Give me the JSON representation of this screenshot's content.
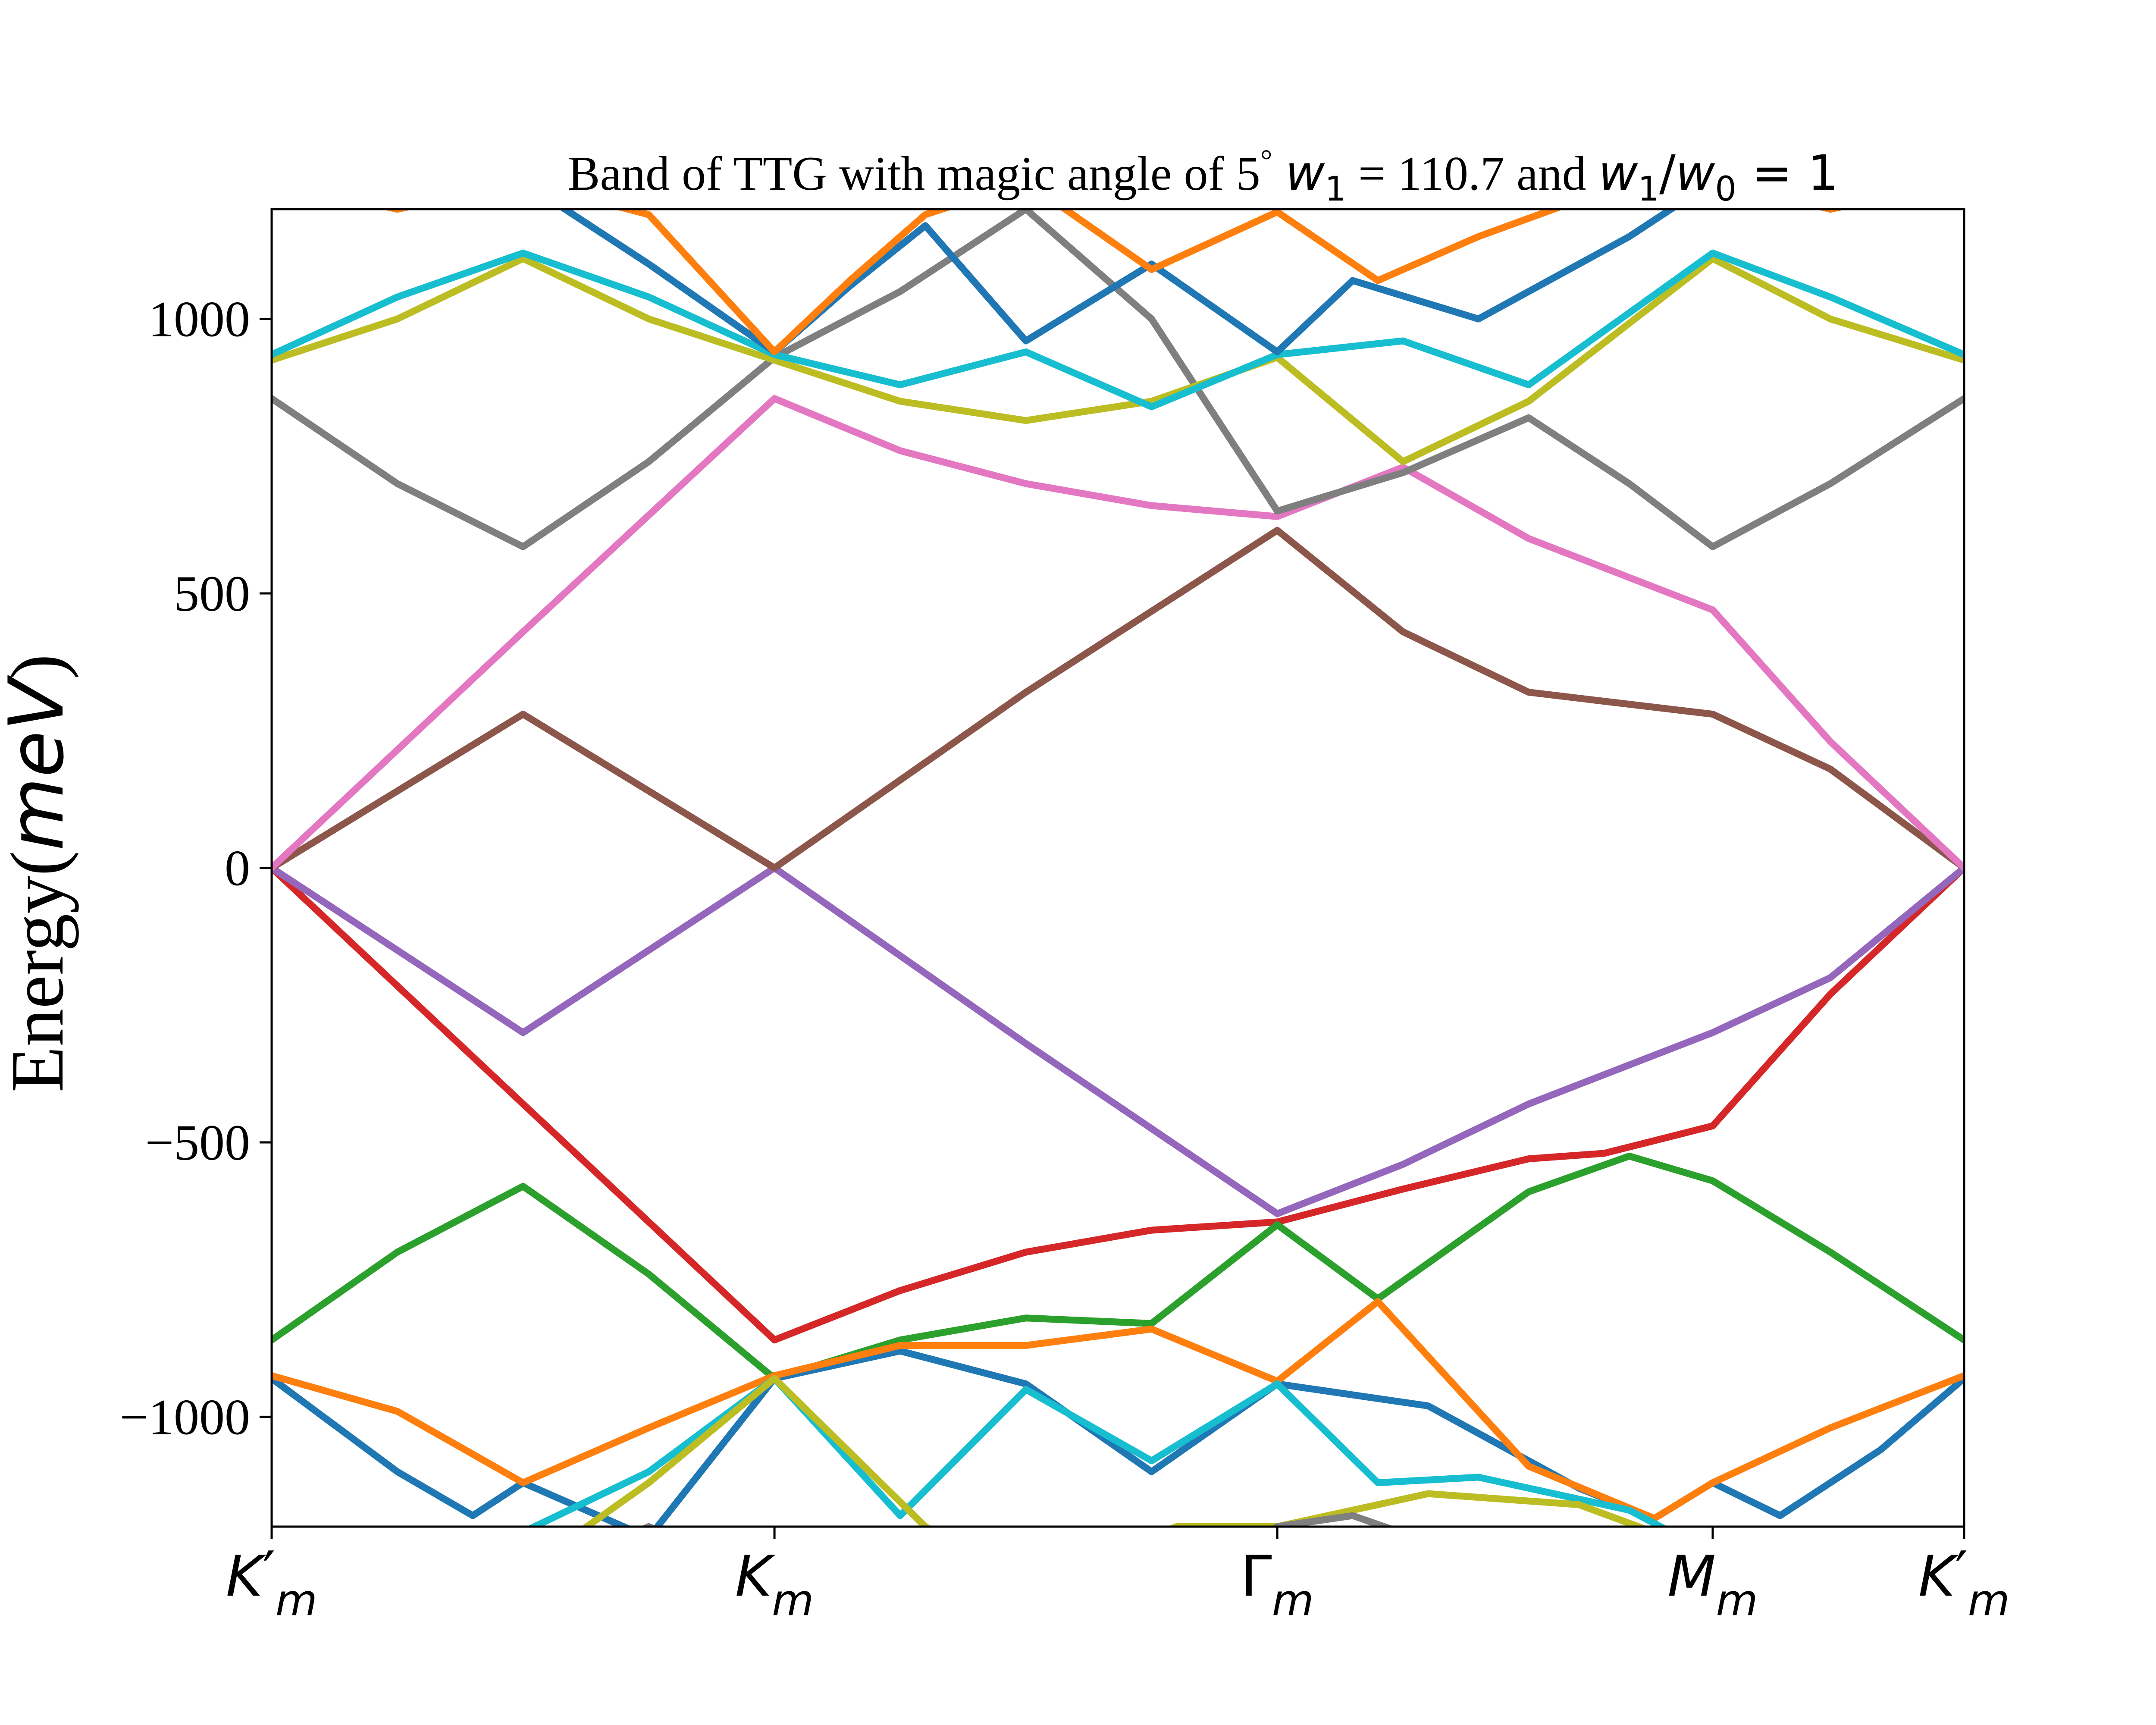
{
  "chart_data": {
    "type": "line",
    "title": {
      "prefix": "Band of TTG with magic angle of 5",
      "degree": "°",
      "w1_sym": "w",
      "w1_sub": "1",
      "w1_val": " = 110.7 and ",
      "ratio_w": "w",
      "ratio_sub1": "1",
      "ratio_slash": "/",
      "ratio_w0": "w",
      "ratio_sub0": "0",
      "ratio_val": " = 1"
    },
    "ylabel": {
      "text": "Energy(",
      "unit": "meV",
      "close": ")"
    },
    "ylim": [
      -1200,
      1200
    ],
    "xlim": [
      0,
      3.366
    ],
    "yticks": [
      {
        "value": 1000,
        "label": "1000"
      },
      {
        "value": 500,
        "label": "500"
      },
      {
        "value": 0,
        "label": "0"
      },
      {
        "value": -500,
        "label": "−500"
      },
      {
        "value": -1000,
        "label": "−1000"
      }
    ],
    "xticks": [
      {
        "value": 0,
        "base": "K",
        "prime": "′",
        "sub": "m"
      },
      {
        "value": 1.0,
        "base": "K",
        "prime": "",
        "sub": "m"
      },
      {
        "value": 2.0,
        "base": "Γ",
        "prime": "",
        "sub": "m"
      },
      {
        "value": 2.866,
        "base": "M",
        "prime": "",
        "sub": "m"
      },
      {
        "value": 3.366,
        "base": "K",
        "prime": "′",
        "sub": "m"
      }
    ],
    "grid": false,
    "series": [
      {
        "color": "#d62728",
        "x": [
          0,
          0.5,
          1.0,
          1.25,
          1.5,
          1.75,
          2.0,
          2.25,
          2.5,
          2.65,
          2.866,
          3.1,
          3.366
        ],
        "y": [
          0,
          -430,
          -860,
          -770,
          -700,
          -660,
          -645,
          -585,
          -530,
          -520,
          -470,
          -230,
          0
        ]
      },
      {
        "color": "#9467bd",
        "x": [
          0,
          0.5,
          1.0,
          1.5,
          2.0,
          2.25,
          2.5,
          2.866,
          3.1,
          3.366
        ],
        "y": [
          0,
          -300,
          0,
          -320,
          -630,
          -540,
          -430,
          -300,
          -200,
          0
        ]
      },
      {
        "color": "#8c564b",
        "x": [
          0,
          0.5,
          1.0,
          1.5,
          2.0,
          2.25,
          2.5,
          2.866,
          3.1,
          3.366
        ],
        "y": [
          0,
          280,
          0,
          320,
          615,
          430,
          320,
          280,
          180,
          0
        ]
      },
      {
        "color": "#e377c2",
        "x": [
          0,
          0.5,
          1.0,
          1.25,
          1.5,
          1.75,
          2.0,
          2.25,
          2.5,
          2.866,
          3.1,
          3.366
        ],
        "y": [
          0,
          430,
          855,
          760,
          700,
          660,
          640,
          730,
          600,
          470,
          230,
          0
        ]
      },
      {
        "color": "#2ca02c",
        "x": [
          0,
          0.25,
          0.5,
          0.75,
          1.0,
          1.25,
          1.5,
          1.75,
          2.0,
          2.2,
          2.5,
          2.7,
          2.866,
          3.1,
          3.366
        ],
        "y": [
          -860,
          -700,
          -580,
          -740,
          -930,
          -860,
          -820,
          -830,
          -650,
          -785,
          -590,
          -525,
          -570,
          -700,
          -860
        ]
      },
      {
        "color": "#7f7f7f",
        "x": [
          0,
          0.25,
          0.5,
          0.75,
          1.0,
          1.25,
          1.5,
          1.75,
          2.0,
          2.25,
          2.5,
          2.7,
          2.866,
          3.1,
          3.366
        ],
        "y": [
          855,
          700,
          585,
          740,
          930,
          1050,
          1200,
          1000,
          650,
          720,
          820,
          700,
          585,
          700,
          855
        ]
      },
      {
        "color": "#bcbd22",
        "x": [
          0,
          0.25,
          0.5,
          0.75,
          1.0,
          1.25,
          1.5,
          1.75,
          2.0,
          2.25,
          2.5,
          2.866,
          3.1,
          3.366
        ],
        "y": [
          925,
          1000,
          1110,
          1000,
          925,
          850,
          815,
          850,
          930,
          740,
          850,
          1110,
          1000,
          925
        ]
      },
      {
        "color": "#17becf",
        "x": [
          0,
          0.25,
          0.5,
          0.75,
          1.0,
          1.25,
          1.5,
          1.75,
          2.0,
          2.25,
          2.5,
          2.866,
          3.1,
          3.366
        ],
        "y": [
          935,
          1040,
          1120,
          1040,
          935,
          880,
          940,
          840,
          935,
          960,
          880,
          1120,
          1040,
          935
        ]
      },
      {
        "color": "#1f77b4",
        "x": [
          0,
          0.25,
          0.5,
          0.75,
          1.0,
          1.15,
          1.3,
          1.5,
          1.75,
          2.0,
          2.15,
          2.4,
          2.7,
          2.866,
          3.1,
          3.366
        ],
        "y": [
          1250,
          1200,
          1250,
          1100,
          940,
          1060,
          1170,
          960,
          1100,
          940,
          1070,
          1000,
          1150,
          1250,
          1200,
          1250
        ]
      },
      {
        "color": "#ff7f0e",
        "x": [
          0,
          0.25,
          0.5,
          0.75,
          1.0,
          1.15,
          1.3,
          1.5,
          1.75,
          2.0,
          2.2,
          2.4,
          2.7,
          2.866,
          3.1,
          3.366
        ],
        "y": [
          1250,
          1200,
          1250,
          1190,
          940,
          1070,
          1190,
          1250,
          1090,
          1195,
          1070,
          1150,
          1250,
          1250,
          1200,
          1250
        ]
      },
      {
        "color": "#1f77b4",
        "x": [
          0,
          0.25,
          0.4,
          0.5,
          0.75,
          1.0,
          1.25,
          1.5,
          1.75,
          2.0,
          2.3,
          2.6,
          2.75,
          2.866,
          3.0,
          3.2,
          3.366
        ],
        "y": [
          -930,
          -1100,
          -1180,
          -1120,
          -1220,
          -930,
          -880,
          -940,
          -1100,
          -940,
          -980,
          -1130,
          -1185,
          -1120,
          -1180,
          -1060,
          -930
        ]
      },
      {
        "color": "#ff7f0e",
        "x": [
          0,
          0.25,
          0.5,
          0.75,
          1.0,
          1.25,
          1.5,
          1.75,
          2.0,
          2.2,
          2.5,
          2.75,
          2.866,
          3.1,
          3.366
        ],
        "y": [
          -925,
          -990,
          -1120,
          -1020,
          -925,
          -870,
          -870,
          -840,
          -935,
          -790,
          -1090,
          -1185,
          -1120,
          -1020,
          -925
        ]
      },
      {
        "color": "#17becf",
        "x": [
          0.35,
          0.5,
          0.75,
          1.0,
          1.25,
          1.5,
          1.75,
          2.0,
          2.2,
          2.4,
          2.7,
          2.866,
          3.1,
          3.366
        ],
        "y": [
          -1250,
          -1210,
          -1100,
          -930,
          -1180,
          -950,
          -1080,
          -940,
          -1120,
          -1110,
          -1170,
          -1250,
          -1220,
          -1250
        ]
      },
      {
        "color": "#bcbd22",
        "x": [
          0.55,
          0.75,
          1.0,
          1.3,
          1.5,
          1.8,
          2.0,
          2.3,
          2.6,
          2.866
        ],
        "y": [
          -1250,
          -1120,
          -930,
          -1200,
          -1300,
          -1200,
          -1200,
          -1140,
          -1160,
          -1250
        ]
      },
      {
        "color": "#7f7f7f",
        "x": [
          0.6,
          0.75,
          0.9,
          1.9,
          2.0,
          2.15,
          2.4
        ],
        "y": [
          -1260,
          -1200,
          -1260,
          -1260,
          -1200,
          -1180,
          -1260
        ]
      }
    ]
  }
}
